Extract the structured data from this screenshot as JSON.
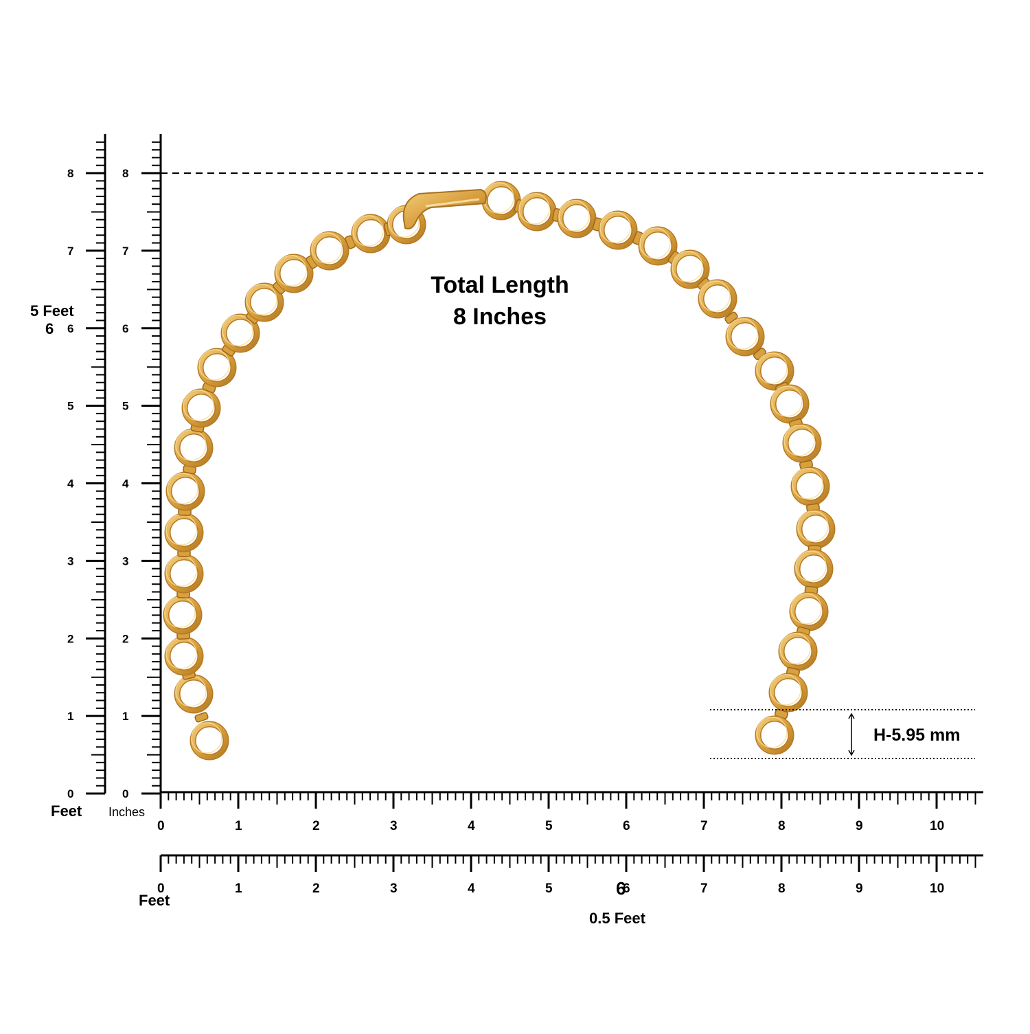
{
  "title_line1": "Total Length",
  "title_line2": "8 Inches",
  "height_label": "H-5.95 mm",
  "inch_ticks": [
    "0",
    "1",
    "2",
    "3",
    "4",
    "5",
    "6",
    "7",
    "8"
  ],
  "bottom_ticks": [
    "0",
    "1",
    "2",
    "3",
    "4",
    "5",
    "6",
    "7",
    "8",
    "9",
    "10"
  ],
  "left_label_feet_top": "5 Feet",
  "left_label_six": "6",
  "left_unit_feet": "Feet",
  "left_unit_inches": "Inches",
  "bottom_unit_feet": "Feet",
  "bottom_six": "6",
  "bottom_half_feet": "0.5 Feet",
  "colors": {
    "gold": "#d9a03e",
    "gold_dark": "#b57a22",
    "gold_light": "#f3cd7c",
    "ink": "#000000"
  },
  "product": {
    "ring_count": 35,
    "icon": "chain-extender"
  }
}
